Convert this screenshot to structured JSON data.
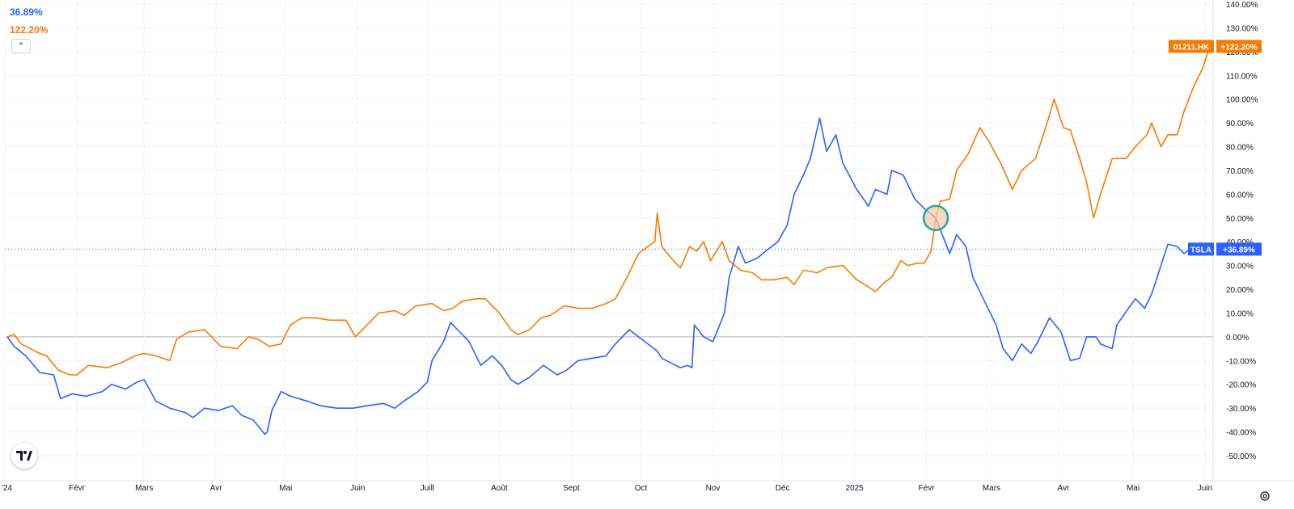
{
  "legend": {
    "tsla_value": "36.89%",
    "hk_value": "122.20%",
    "collapse_icon": "chevron-up-icon"
  },
  "colors": {
    "tsla": "#2962ff",
    "hk": "#f57c00",
    "highlight_ring": "#26a69a",
    "highlight_fill": "#f5c9a8",
    "axis_text": "#131722",
    "grid": "#f0f3fa",
    "zero_line": "#b2b5be"
  },
  "icons": {
    "logo": "tradingview-logo-icon",
    "settings": "gear-icon"
  },
  "chart_data": {
    "type": "line",
    "y_unit": "%",
    "ylim": [
      -60,
      140
    ],
    "y_ticks": [
      "140.00%",
      "130.00%",
      "120.00%",
      "110.00%",
      "100.00%",
      "90.00%",
      "80.00%",
      "70.00%",
      "60.00%",
      "50.00%",
      "40.00%",
      "30.00%",
      "20.00%",
      "10.00%",
      "0.00%",
      "-10.00%",
      "-20.00%",
      "-30.00%",
      "-40.00%",
      "-50.00%"
    ],
    "x_ticks": [
      "'24",
      "Févr",
      "Mars",
      "Avr",
      "Mai",
      "Juin",
      "Juill",
      "Août",
      "Sept",
      "Oct",
      "Nov",
      "Déc",
      "2025",
      "Févr",
      "Mars",
      "Avr",
      "Mai",
      "Juin"
    ],
    "x_range": [
      "2024-01-01",
      "2025-06-05"
    ],
    "grid": true,
    "series": [
      {
        "name": "TSLA",
        "label": "TSLA",
        "last_label": "+36.89%",
        "last_value": 36.89,
        "points": [
          [
            "2024-01-02",
            0
          ],
          [
            "2024-01-05",
            -4
          ],
          [
            "2024-01-10",
            -8
          ],
          [
            "2024-01-16",
            -15
          ],
          [
            "2024-01-22",
            -16
          ],
          [
            "2024-01-25",
            -26
          ],
          [
            "2024-01-30",
            -24
          ],
          [
            "2024-02-05",
            -25
          ],
          [
            "2024-02-12",
            -23
          ],
          [
            "2024-02-16",
            -20
          ],
          [
            "2024-02-22",
            -22
          ],
          [
            "2024-02-27",
            -19
          ],
          [
            "2024-03-01",
            -18
          ],
          [
            "2024-03-06",
            -27
          ],
          [
            "2024-03-12",
            -30
          ],
          [
            "2024-03-19",
            -32
          ],
          [
            "2024-03-22",
            -34
          ],
          [
            "2024-03-27",
            -30
          ],
          [
            "2024-04-02",
            -31
          ],
          [
            "2024-04-08",
            -29
          ],
          [
            "2024-04-12",
            -33
          ],
          [
            "2024-04-17",
            -35
          ],
          [
            "2024-04-22",
            -41
          ],
          [
            "2024-04-23",
            -40
          ],
          [
            "2024-04-25",
            -31
          ],
          [
            "2024-04-29",
            -23
          ],
          [
            "2024-05-03",
            -25
          ],
          [
            "2024-05-10",
            -27
          ],
          [
            "2024-05-16",
            -29
          ],
          [
            "2024-05-23",
            -30
          ],
          [
            "2024-05-30",
            -30
          ],
          [
            "2024-06-05",
            -29
          ],
          [
            "2024-06-12",
            -28
          ],
          [
            "2024-06-17",
            -30
          ],
          [
            "2024-06-21",
            -27
          ],
          [
            "2024-06-27",
            -23
          ],
          [
            "2024-07-01",
            -19
          ],
          [
            "2024-07-03",
            -10
          ],
          [
            "2024-07-08",
            -2
          ],
          [
            "2024-07-11",
            6
          ],
          [
            "2024-07-15",
            2
          ],
          [
            "2024-07-19",
            -2
          ],
          [
            "2024-07-24",
            -12
          ],
          [
            "2024-07-29",
            -8
          ],
          [
            "2024-08-02",
            -12
          ],
          [
            "2024-08-06",
            -18
          ],
          [
            "2024-08-09",
            -20
          ],
          [
            "2024-08-14",
            -17
          ],
          [
            "2024-08-20",
            -12
          ],
          [
            "2024-08-26",
            -16
          ],
          [
            "2024-08-30",
            -14
          ],
          [
            "2024-09-04",
            -10
          ],
          [
            "2024-09-10",
            -9
          ],
          [
            "2024-09-16",
            -8
          ],
          [
            "2024-09-20",
            -3
          ],
          [
            "2024-09-26",
            3
          ],
          [
            "2024-09-30",
            0
          ],
          [
            "2024-10-04",
            -3
          ],
          [
            "2024-10-08",
            -6
          ],
          [
            "2024-10-10",
            -9
          ],
          [
            "2024-10-14",
            -11
          ],
          [
            "2024-10-18",
            -13
          ],
          [
            "2024-10-21",
            -12
          ],
          [
            "2024-10-23",
            -13
          ],
          [
            "2024-10-24",
            5
          ],
          [
            "2024-10-28",
            0
          ],
          [
            "2024-11-01",
            -2
          ],
          [
            "2024-11-06",
            10
          ],
          [
            "2024-11-08",
            25
          ],
          [
            "2024-11-12",
            38
          ],
          [
            "2024-11-15",
            31
          ],
          [
            "2024-11-20",
            33
          ],
          [
            "2024-11-25",
            37
          ],
          [
            "2024-11-29",
            40
          ],
          [
            "2024-12-03",
            47
          ],
          [
            "2024-12-06",
            60
          ],
          [
            "2024-12-10",
            68
          ],
          [
            "2024-12-13",
            75
          ],
          [
            "2024-12-17",
            92
          ],
          [
            "2024-12-20",
            78
          ],
          [
            "2024-12-24",
            85
          ],
          [
            "2024-12-27",
            73
          ],
          [
            "2025-01-02",
            62
          ],
          [
            "2025-01-07",
            55
          ],
          [
            "2025-01-10",
            62
          ],
          [
            "2025-01-15",
            60
          ],
          [
            "2025-01-17",
            70
          ],
          [
            "2025-01-22",
            68
          ],
          [
            "2025-01-27",
            58
          ],
          [
            "2025-01-31",
            54
          ],
          [
            "2025-02-05",
            50
          ],
          [
            "2025-02-07",
            45
          ],
          [
            "2025-02-11",
            35
          ],
          [
            "2025-02-14",
            43
          ],
          [
            "2025-02-18",
            38
          ],
          [
            "2025-02-21",
            25
          ],
          [
            "2025-02-26",
            15
          ],
          [
            "2025-03-03",
            5
          ],
          [
            "2025-03-06",
            -5
          ],
          [
            "2025-03-10",
            -10
          ],
          [
            "2025-03-14",
            -3
          ],
          [
            "2025-03-18",
            -7
          ],
          [
            "2025-03-21",
            -2
          ],
          [
            "2025-03-26",
            8
          ],
          [
            "2025-03-31",
            2
          ],
          [
            "2025-04-04",
            -10
          ],
          [
            "2025-04-08",
            -9
          ],
          [
            "2025-04-11",
            0
          ],
          [
            "2025-04-15",
            0
          ],
          [
            "2025-04-17",
            -3
          ],
          [
            "2025-04-22",
            -5
          ],
          [
            "2025-04-24",
            5
          ],
          [
            "2025-04-29",
            12
          ],
          [
            "2025-05-02",
            16
          ],
          [
            "2025-05-06",
            12
          ],
          [
            "2025-05-09",
            18
          ],
          [
            "2025-05-13",
            30
          ],
          [
            "2025-05-16",
            39
          ],
          [
            "2025-05-20",
            38
          ],
          [
            "2025-05-23",
            35
          ],
          [
            "2025-05-27",
            38
          ],
          [
            "2025-05-29",
            36.89
          ]
        ]
      },
      {
        "name": "01211.HK",
        "label": "01211.HK",
        "last_label": "+122.20%",
        "last_value": 122.2,
        "points": [
          [
            "2024-01-02",
            0
          ],
          [
            "2024-01-05",
            1
          ],
          [
            "2024-01-08",
            -3
          ],
          [
            "2024-01-12",
            -5
          ],
          [
            "2024-01-16",
            -7
          ],
          [
            "2024-01-19",
            -8
          ],
          [
            "2024-01-24",
            -14
          ],
          [
            "2024-01-29",
            -16
          ],
          [
            "2024-02-01",
            -16
          ],
          [
            "2024-02-06",
            -12
          ],
          [
            "2024-02-14",
            -13
          ],
          [
            "2024-02-20",
            -11
          ],
          [
            "2024-02-26",
            -8
          ],
          [
            "2024-03-01",
            -7
          ],
          [
            "2024-03-06",
            -8
          ],
          [
            "2024-03-12",
            -10
          ],
          [
            "2024-03-15",
            -1
          ],
          [
            "2024-03-20",
            2
          ],
          [
            "2024-03-27",
            3
          ],
          [
            "2024-04-03",
            -4
          ],
          [
            "2024-04-10",
            -5
          ],
          [
            "2024-04-15",
            0
          ],
          [
            "2024-04-19",
            -1
          ],
          [
            "2024-04-24",
            -4
          ],
          [
            "2024-04-29",
            -3
          ],
          [
            "2024-05-03",
            5
          ],
          [
            "2024-05-08",
            8
          ],
          [
            "2024-05-14",
            8
          ],
          [
            "2024-05-20",
            7
          ],
          [
            "2024-05-27",
            7
          ],
          [
            "2024-05-31",
            0
          ],
          [
            "2024-06-05",
            5
          ],
          [
            "2024-06-10",
            10
          ],
          [
            "2024-06-17",
            11
          ],
          [
            "2024-06-21",
            9
          ],
          [
            "2024-06-26",
            13
          ],
          [
            "2024-07-03",
            14
          ],
          [
            "2024-07-08",
            11
          ],
          [
            "2024-07-12",
            12
          ],
          [
            "2024-07-16",
            15
          ],
          [
            "2024-07-22",
            16
          ],
          [
            "2024-07-26",
            16
          ],
          [
            "2024-08-01",
            10
          ],
          [
            "2024-08-06",
            3
          ],
          [
            "2024-08-09",
            1
          ],
          [
            "2024-08-14",
            3
          ],
          [
            "2024-08-19",
            8
          ],
          [
            "2024-08-23",
            9
          ],
          [
            "2024-08-29",
            13
          ],
          [
            "2024-09-04",
            12
          ],
          [
            "2024-09-10",
            12
          ],
          [
            "2024-09-16",
            14
          ],
          [
            "2024-09-20",
            16
          ],
          [
            "2024-09-25",
            25
          ],
          [
            "2024-09-30",
            35
          ],
          [
            "2024-10-04",
            38
          ],
          [
            "2024-10-07",
            40
          ],
          [
            "2024-10-08",
            52
          ],
          [
            "2024-10-10",
            38
          ],
          [
            "2024-10-15",
            32
          ],
          [
            "2024-10-18",
            29
          ],
          [
            "2024-10-22",
            38
          ],
          [
            "2024-10-25",
            36
          ],
          [
            "2024-10-28",
            40
          ],
          [
            "2024-10-31",
            32
          ],
          [
            "2024-11-05",
            40
          ],
          [
            "2024-11-08",
            32
          ],
          [
            "2024-11-13",
            28
          ],
          [
            "2024-11-18",
            27
          ],
          [
            "2024-11-22",
            24
          ],
          [
            "2024-11-27",
            24
          ],
          [
            "2024-12-03",
            25
          ],
          [
            "2024-12-06",
            22
          ],
          [
            "2024-12-10",
            28
          ],
          [
            "2024-12-16",
            27
          ],
          [
            "2024-12-20",
            29
          ],
          [
            "2024-12-27",
            30
          ],
          [
            "2025-01-02",
            24
          ],
          [
            "2025-01-07",
            21
          ],
          [
            "2025-01-10",
            19
          ],
          [
            "2025-01-14",
            23
          ],
          [
            "2025-01-17",
            25
          ],
          [
            "2025-01-21",
            32
          ],
          [
            "2025-01-24",
            30
          ],
          [
            "2025-01-28",
            31
          ],
          [
            "2025-01-31",
            31
          ],
          [
            "2025-02-03",
            36
          ],
          [
            "2025-02-05",
            50
          ],
          [
            "2025-02-07",
            57
          ],
          [
            "2025-02-11",
            58
          ],
          [
            "2025-02-14",
            70
          ],
          [
            "2025-02-19",
            77
          ],
          [
            "2025-02-24",
            88
          ],
          [
            "2025-02-28",
            82
          ],
          [
            "2025-03-05",
            73
          ],
          [
            "2025-03-10",
            62
          ],
          [
            "2025-03-14",
            70
          ],
          [
            "2025-03-20",
            75
          ],
          [
            "2025-03-25",
            90
          ],
          [
            "2025-03-28",
            100
          ],
          [
            "2025-04-01",
            88
          ],
          [
            "2025-04-04",
            87
          ],
          [
            "2025-04-08",
            75
          ],
          [
            "2025-04-11",
            65
          ],
          [
            "2025-04-14",
            50
          ],
          [
            "2025-04-17",
            60
          ],
          [
            "2025-04-22",
            75
          ],
          [
            "2025-04-28",
            75
          ],
          [
            "2025-05-02",
            80
          ],
          [
            "2025-05-07",
            85
          ],
          [
            "2025-05-09",
            90
          ],
          [
            "2025-05-13",
            80
          ],
          [
            "2025-05-16",
            85
          ],
          [
            "2025-05-20",
            85
          ],
          [
            "2025-05-23",
            95
          ],
          [
            "2025-05-27",
            105
          ],
          [
            "2025-05-31",
            113
          ],
          [
            "2025-06-03",
            122.2
          ]
        ]
      }
    ]
  }
}
